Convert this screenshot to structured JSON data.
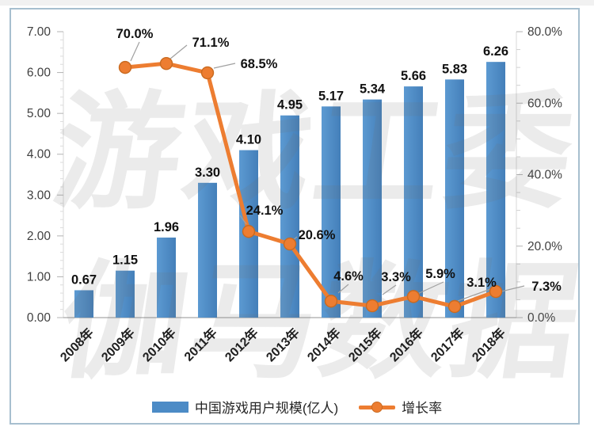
{
  "watermark": {
    "row1": "游戏工委",
    "row2": "伽马数据"
  },
  "chart_data": {
    "type": "bar",
    "subtype": "combo-bar-line-dual-axis",
    "title": "",
    "categories": [
      "2008年",
      "2009年",
      "2010年",
      "2011年",
      "2012年",
      "2013年",
      "2014年",
      "2015年",
      "2016年",
      "2017年",
      "2018年"
    ],
    "left_axis": {
      "min": 0,
      "max": 7,
      "ticks": [
        "0.00",
        "1.00",
        "2.00",
        "3.00",
        "4.00",
        "5.00",
        "6.00",
        "7.00"
      ]
    },
    "right_axis": {
      "min": 0,
      "max": 80,
      "ticks": [
        "0.0%",
        "20.0%",
        "40.0%",
        "60.0%",
        "80.0%"
      ]
    },
    "grid": false,
    "legend_position": "bottom",
    "series": [
      {
        "name": "中国游戏用户规模(亿人)",
        "type": "bar",
        "axis": "left",
        "color": "#4c8bc6",
        "values": [
          0.67,
          1.15,
          1.96,
          3.3,
          4.1,
          4.95,
          5.17,
          5.34,
          5.66,
          5.83,
          6.26
        ],
        "labels": [
          "0.67",
          "1.15",
          "1.96",
          "3.30",
          "4.10",
          "4.95",
          "5.17",
          "5.34",
          "5.66",
          "5.83",
          "6.26"
        ]
      },
      {
        "name": "增长率",
        "type": "line",
        "axis": "right",
        "color": "#ed7d31",
        "start_index": 1,
        "values": [
          70.0,
          71.1,
          68.5,
          24.1,
          20.6,
          4.6,
          3.3,
          5.9,
          3.1,
          7.3
        ],
        "labels": [
          "70.0%",
          "71.1%",
          "68.5%",
          "24.1%",
          "20.6%",
          "4.6%",
          "3.3%",
          "5.9%",
          "3.1%",
          "7.3%"
        ]
      }
    ]
  }
}
